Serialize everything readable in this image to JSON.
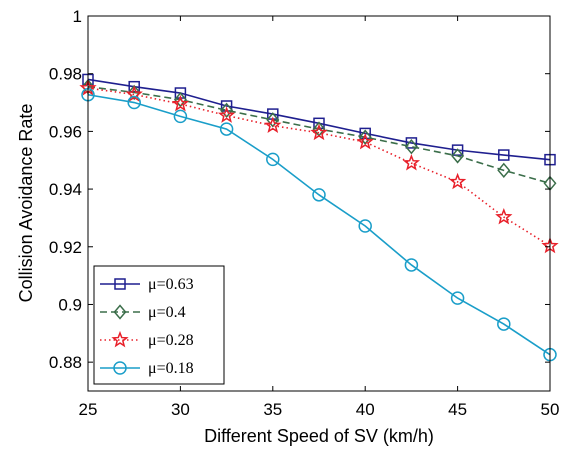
{
  "chart_data": {
    "type": "line",
    "title": "",
    "xlabel": "Different Speed of SV (km/h)",
    "ylabel": "Collision Avoidance Rate",
    "xlim": [
      25,
      50
    ],
    "ylim": [
      0.87,
      1.0
    ],
    "xticks": [
      25,
      30,
      35,
      40,
      45,
      50
    ],
    "yticks": [
      0.88,
      0.9,
      0.92,
      0.94,
      0.96,
      0.98,
      1
    ],
    "ytick_labels": [
      "0.88",
      "0.9",
      "0.92",
      "0.94",
      "0.96",
      "0.98",
      "1"
    ],
    "grid": false,
    "legend_position": "bottom-left",
    "x": [
      25,
      27.5,
      30,
      32.5,
      35,
      37.5,
      40,
      42.5,
      45,
      47.5,
      50
    ],
    "series": [
      {
        "name": "μ=0.63",
        "color": "#1f1f8f",
        "line_style": "solid",
        "marker": "square",
        "values": [
          0.978,
          0.9755,
          0.9733,
          0.9688,
          0.966,
          0.9628,
          0.9593,
          0.956,
          0.9535,
          0.9518,
          0.9502
        ]
      },
      {
        "name": "μ=0.4",
        "color": "#3b6e4a",
        "line_style": "dashed",
        "marker": "diamond",
        "values": [
          0.9755,
          0.9735,
          0.971,
          0.9673,
          0.964,
          0.9608,
          0.958,
          0.9547,
          0.9515,
          0.9465,
          0.942
        ]
      },
      {
        "name": "μ=0.28",
        "color": "#e8202a",
        "line_style": "dotted",
        "marker": "star",
        "values": [
          0.975,
          0.9728,
          0.9695,
          0.9655,
          0.962,
          0.9595,
          0.9563,
          0.949,
          0.9425,
          0.9303,
          0.9203
        ]
      },
      {
        "name": "μ=0.18",
        "color": "#1a9ec9",
        "line_style": "solid",
        "marker": "circle",
        "values": [
          0.9727,
          0.97,
          0.9652,
          0.9608,
          0.9503,
          0.938,
          0.9272,
          0.9137,
          0.9022,
          0.8932,
          0.8826
        ]
      }
    ]
  }
}
